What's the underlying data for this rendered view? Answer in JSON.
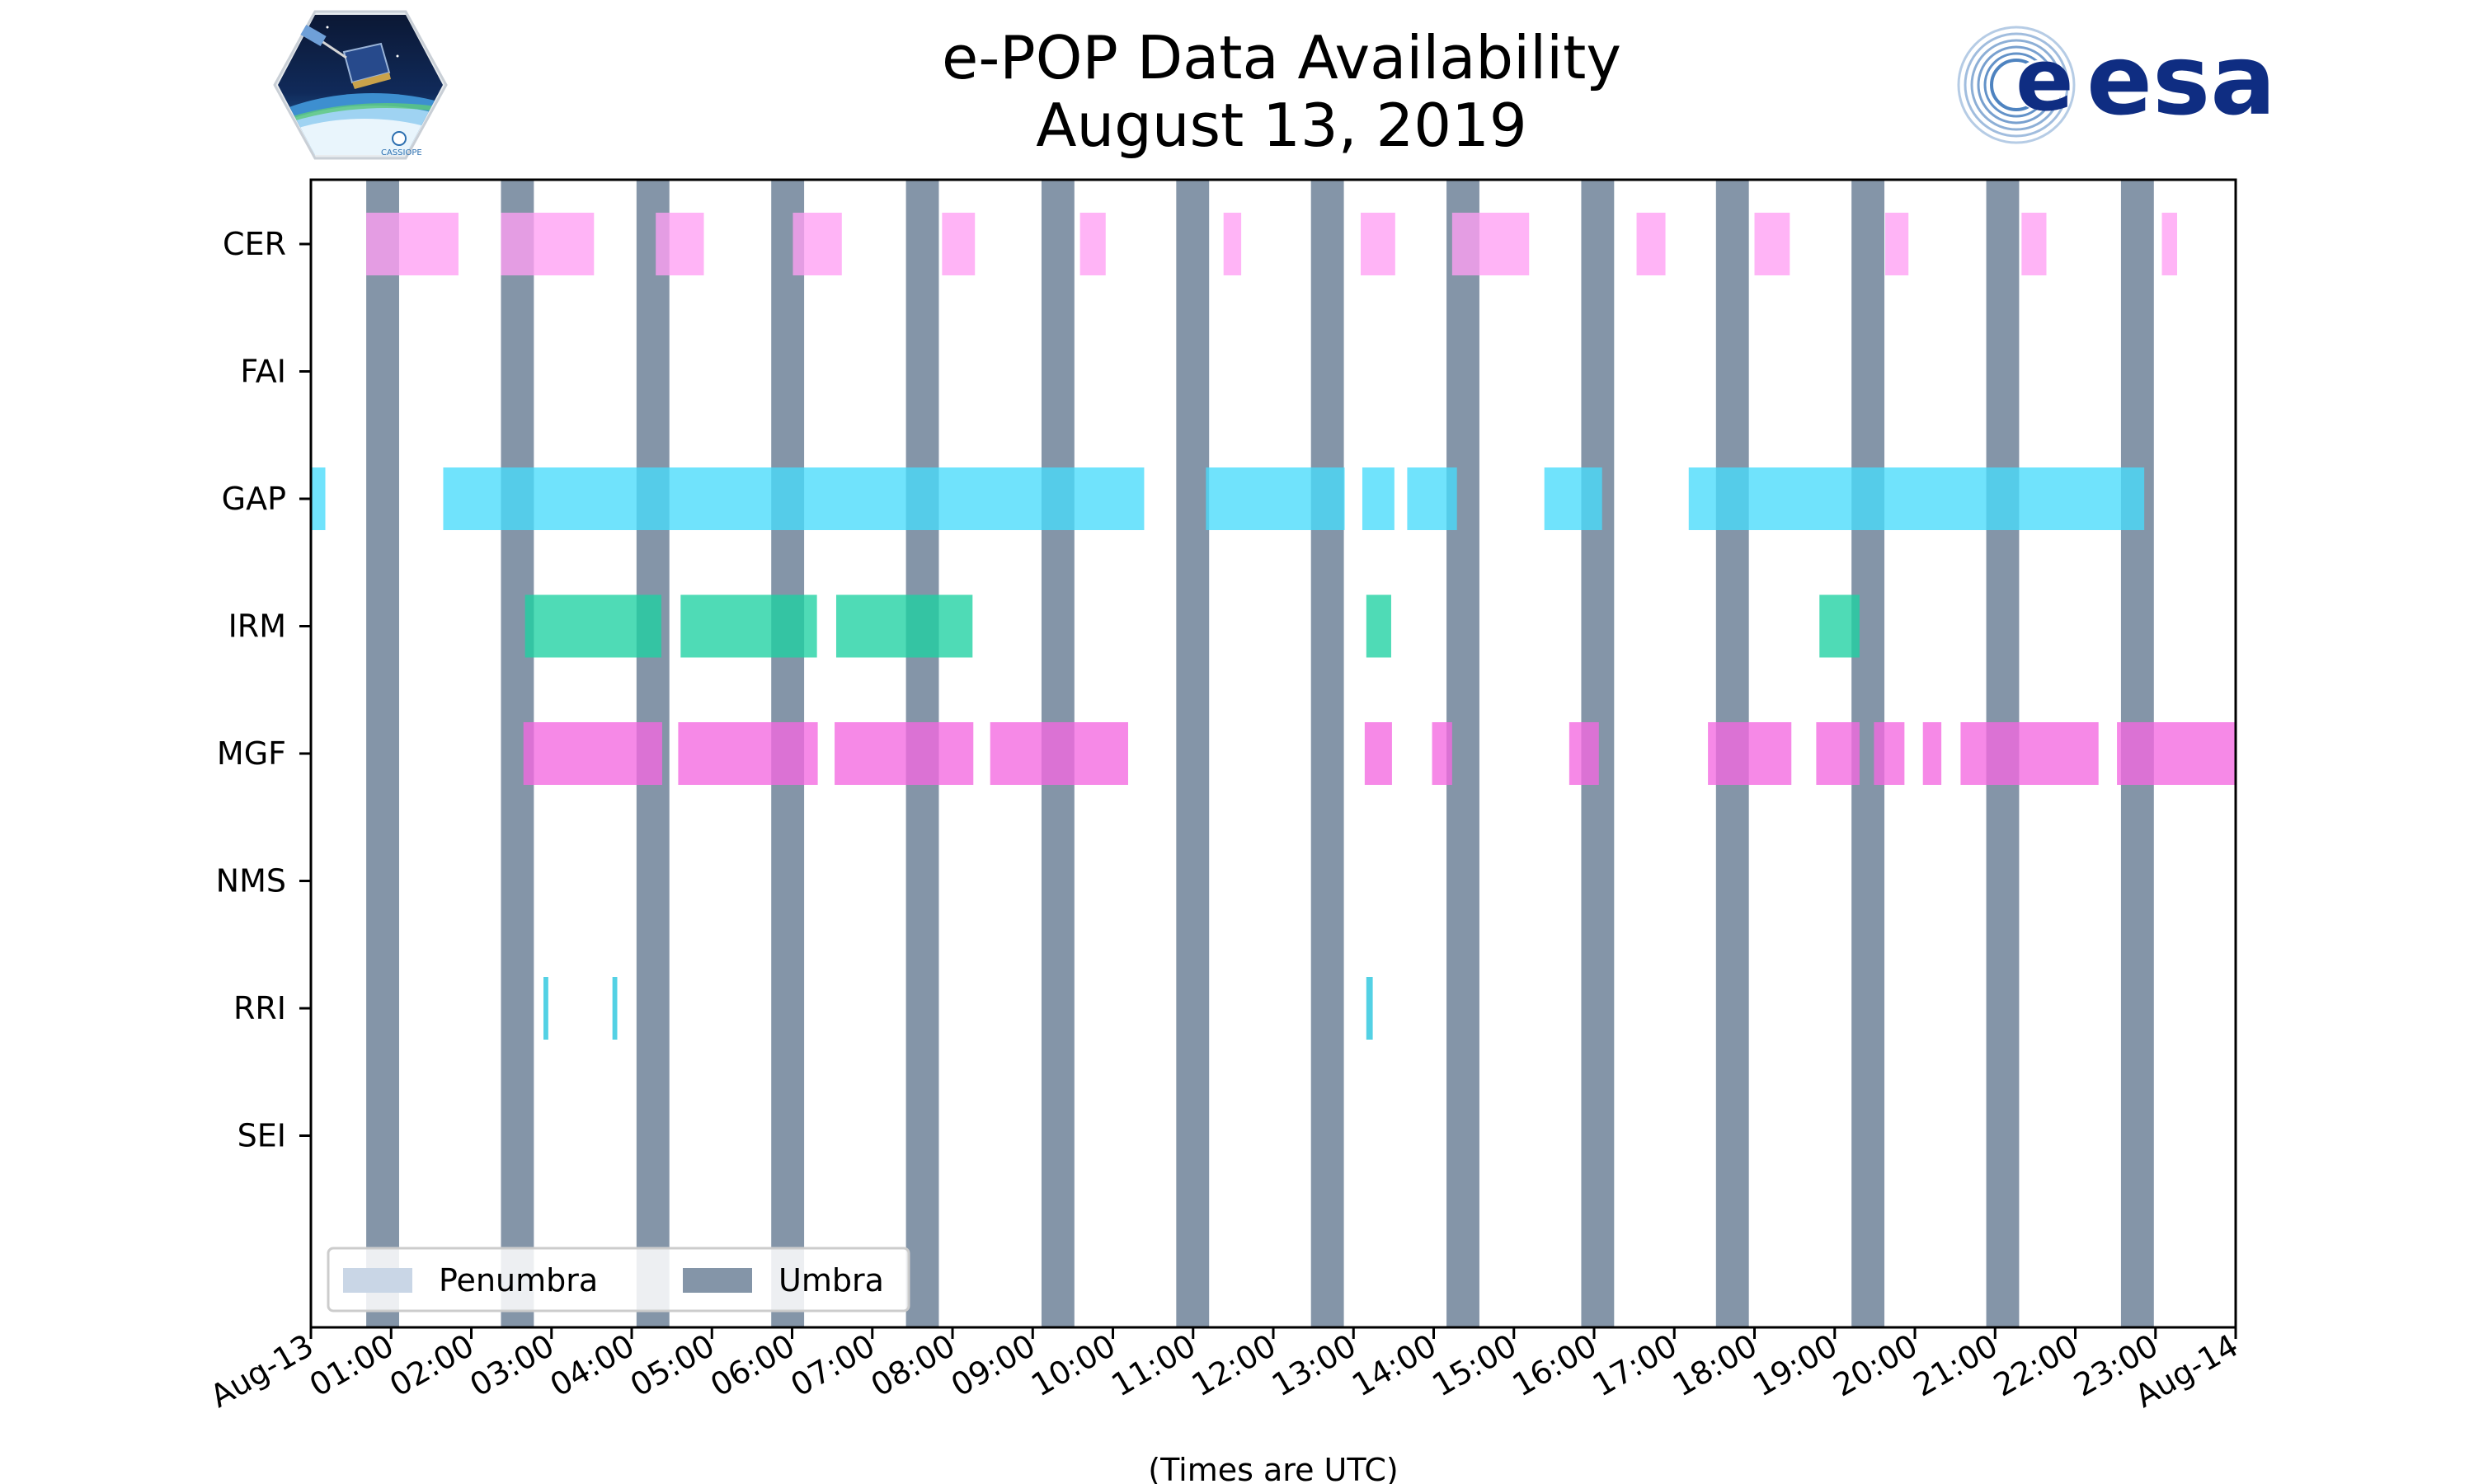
{
  "chart_data": {
    "type": "timeline",
    "title": [
      "e-POP Data Availability",
      "August 13, 2019"
    ],
    "xlabel": "(Times are UTC)",
    "x_unit": "hours UTC",
    "xlim": [
      0,
      24
    ],
    "x_ticks": [
      {
        "value": 0,
        "label": "Aug-13"
      },
      {
        "value": 1,
        "label": "01:00"
      },
      {
        "value": 2,
        "label": "02:00"
      },
      {
        "value": 3,
        "label": "03:00"
      },
      {
        "value": 4,
        "label": "04:00"
      },
      {
        "value": 5,
        "label": "05:00"
      },
      {
        "value": 6,
        "label": "06:00"
      },
      {
        "value": 7,
        "label": "07:00"
      },
      {
        "value": 8,
        "label": "08:00"
      },
      {
        "value": 9,
        "label": "09:00"
      },
      {
        "value": 10,
        "label": "10:00"
      },
      {
        "value": 11,
        "label": "11:00"
      },
      {
        "value": 12,
        "label": "12:00"
      },
      {
        "value": 13,
        "label": "13:00"
      },
      {
        "value": 14,
        "label": "14:00"
      },
      {
        "value": 15,
        "label": "15:00"
      },
      {
        "value": 16,
        "label": "16:00"
      },
      {
        "value": 17,
        "label": "17:00"
      },
      {
        "value": 18,
        "label": "18:00"
      },
      {
        "value": 19,
        "label": "19:00"
      },
      {
        "value": 20,
        "label": "20:00"
      },
      {
        "value": 21,
        "label": "21:00"
      },
      {
        "value": 22,
        "label": "22:00"
      },
      {
        "value": 23,
        "label": "23:00"
      },
      {
        "value": 24,
        "label": "Aug-14"
      }
    ],
    "instruments": [
      "CER",
      "FAI",
      "GAP",
      "IRM",
      "MGF",
      "NMS",
      "RRI",
      "SEI"
    ],
    "legend": {
      "location": "lower-left",
      "entries": [
        {
          "label": "Penumbra",
          "color": "#c9d6e6"
        },
        {
          "label": "Umbra",
          "color": "#8495a8"
        }
      ]
    },
    "umbra_intervals": [
      [
        0.69,
        1.1
      ],
      [
        2.37,
        2.78
      ],
      [
        4.06,
        4.47
      ],
      [
        5.74,
        6.15
      ],
      [
        7.42,
        7.83
      ],
      [
        9.11,
        9.52
      ],
      [
        10.79,
        11.2
      ],
      [
        12.47,
        12.88
      ],
      [
        14.16,
        14.57
      ],
      [
        15.84,
        16.25
      ],
      [
        17.52,
        17.93
      ],
      [
        19.21,
        19.62
      ],
      [
        20.89,
        21.3
      ],
      [
        22.57,
        22.98
      ]
    ],
    "series": [
      {
        "name": "CER",
        "color": "#ff9ff3",
        "intervals": [
          [
            0.69,
            1.84
          ],
          [
            2.37,
            3.53
          ],
          [
            4.3,
            4.9
          ],
          [
            6.01,
            6.62
          ],
          [
            7.87,
            8.28
          ],
          [
            9.59,
            9.91
          ],
          [
            11.38,
            11.6
          ],
          [
            13.09,
            13.52
          ],
          [
            14.23,
            15.19
          ],
          [
            16.53,
            16.89
          ],
          [
            18.0,
            18.44
          ],
          [
            19.63,
            19.92
          ],
          [
            21.33,
            21.64
          ],
          [
            23.08,
            23.27
          ]
        ]
      },
      {
        "name": "FAI",
        "color": "#ff9ff3",
        "intervals": []
      },
      {
        "name": "GAP",
        "color": "#48dbfb",
        "intervals": [
          [
            0.0,
            0.18
          ],
          [
            1.65,
            10.39
          ],
          [
            11.16,
            12.89
          ],
          [
            13.11,
            13.51
          ],
          [
            13.67,
            14.29
          ],
          [
            15.38,
            16.1
          ],
          [
            17.18,
            22.86
          ]
        ]
      },
      {
        "name": "IRM",
        "color": "#1dd1a1",
        "intervals": [
          [
            2.67,
            4.37
          ],
          [
            4.61,
            6.31
          ],
          [
            6.55,
            8.25
          ],
          [
            13.16,
            13.47
          ],
          [
            18.81,
            19.31
          ]
        ]
      },
      {
        "name": "MGF",
        "color": "#f368e0",
        "intervals": [
          [
            2.65,
            4.38
          ],
          [
            4.58,
            6.32
          ],
          [
            6.53,
            8.26
          ],
          [
            8.47,
            10.19
          ],
          [
            13.14,
            13.48
          ],
          [
            13.98,
            14.23
          ],
          [
            15.69,
            16.06
          ],
          [
            17.42,
            18.46
          ],
          [
            18.77,
            19.31
          ],
          [
            19.49,
            19.87
          ],
          [
            20.1,
            20.33
          ],
          [
            20.57,
            22.29
          ],
          [
            22.52,
            24.0
          ]
        ]
      },
      {
        "name": "NMS",
        "color": "#ff6b6b",
        "intervals": []
      },
      {
        "name": "RRI",
        "color": "#22c4dd",
        "intervals": [
          [
            2.9,
            2.96
          ],
          [
            3.76,
            3.82
          ],
          [
            13.16,
            13.24
          ]
        ]
      },
      {
        "name": "SEI",
        "color": "#a29bfe",
        "intervals": []
      }
    ]
  },
  "logos": {
    "cassiope": {
      "label": "CASSIOPE"
    },
    "esa": {
      "label": "esa",
      "color": "#0f2d82"
    }
  }
}
